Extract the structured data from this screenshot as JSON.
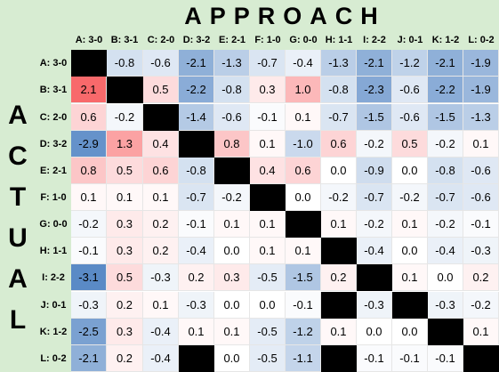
{
  "title": "APPROACH",
  "side_label": [
    "A",
    "C",
    "T",
    "U",
    "A",
    "L"
  ],
  "columns": [
    "A: 3-0",
    "B: 3-1",
    "C: 2-0",
    "D: 3-2",
    "E: 2-1",
    "F: 1-0",
    "G: 0-0",
    "H: 1-1",
    "I: 2-2",
    "J: 0-1",
    "K: 1-2",
    "L: 0-2"
  ],
  "rows": [
    {
      "label": "A: 3-0",
      "cells": [
        "X",
        "-0.8",
        "-0.6",
        "-2.1",
        "-1.3",
        "-0.7",
        "-0.4",
        "-1.3",
        "-2.1",
        "-1.2",
        "-2.1",
        "-1.9"
      ]
    },
    {
      "label": "B: 3-1",
      "cells": [
        "2.1",
        "X",
        "0.5",
        "-2.2",
        "-0.8",
        "0.3",
        "1.0",
        "-0.8",
        "-2.3",
        "-0.6",
        "-2.2",
        "-1.9"
      ]
    },
    {
      "label": "C: 2-0",
      "cells": [
        "0.6",
        "-0.2",
        "X",
        "-1.4",
        "-0.6",
        "-0.1",
        "0.1",
        "-0.7",
        "-1.5",
        "-0.6",
        "-1.5",
        "-1.3"
      ]
    },
    {
      "label": "D: 3-2",
      "cells": [
        "-2.9",
        "1.3",
        "0.4",
        "X",
        "0.8",
        "0.1",
        "-1.0",
        "0.6",
        "-0.2",
        "0.5",
        "-0.2",
        "0.1"
      ]
    },
    {
      "label": "E: 2-1",
      "cells": [
        "0.8",
        "0.5",
        "0.6",
        "-0.8",
        "X",
        "0.4",
        "0.6",
        "0.0",
        "-0.9",
        "0.0",
        "-0.8",
        "-0.6"
      ]
    },
    {
      "label": "F: 1-0",
      "cells": [
        "0.1",
        "0.1",
        "0.1",
        "-0.7",
        "-0.2",
        "X",
        "0.0",
        "-0.2",
        "-0.7",
        "-0.2",
        "-0.7",
        "-0.6"
      ]
    },
    {
      "label": "G: 0-0",
      "cells": [
        "-0.2",
        "0.3",
        "0.2",
        "-0.1",
        "0.1",
        "0.1",
        "X",
        "0.1",
        "-0.2",
        "0.1",
        "-0.2",
        "-0.1"
      ]
    },
    {
      "label": "H: 1-1",
      "cells": [
        "-0.1",
        "0.3",
        "0.2",
        "-0.4",
        "0.0",
        "0.1",
        "0.1",
        "X",
        "-0.4",
        "0.0",
        "-0.4",
        "-0.3"
      ]
    },
    {
      "label": "I: 2-2",
      "cells": [
        "-3.1",
        "0.5",
        "-0.3",
        "0.2",
        "0.3",
        "-0.5",
        "-1.5",
        "0.2",
        "X",
        "0.1",
        "0.0",
        "0.2"
      ]
    },
    {
      "label": "J: 0-1",
      "cells": [
        "-0.3",
        "0.2",
        "0.1",
        "-0.3",
        "0.0",
        "0.0",
        "-0.1",
        "X",
        "-0.3",
        "X",
        "-0.3",
        "-0.2"
      ]
    },
    {
      "label": "K: 1-2",
      "cells": [
        "-2.5",
        "0.3",
        "-0.4",
        "0.1",
        "0.1",
        "-0.5",
        "-1.2",
        "0.1",
        "0.0",
        "0.0",
        "X",
        "0.1"
      ]
    },
    {
      "label": "L: 0-2",
      "cells": [
        "-2.1",
        "0.2",
        "-0.4",
        "X",
        "0.0",
        "-0.5",
        "-1.1",
        "X",
        "-0.1",
        "-0.1",
        "-0.1",
        "X"
      ]
    }
  ],
  "colors": {
    "background": "#d7ecd2",
    "positive_max": "#f8696b",
    "negative_max": "#5a8ac6",
    "neutral": "#ffffff",
    "blocked": "#000000"
  }
}
